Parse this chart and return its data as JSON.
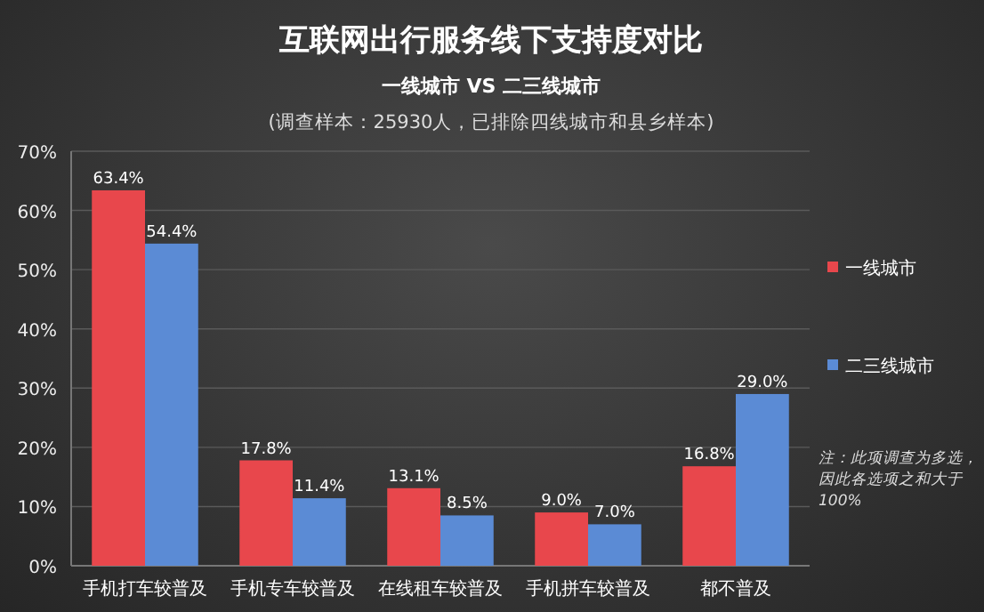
{
  "chart_data": {
    "type": "bar",
    "title": "互联网出行服务线下支持度对比",
    "subtitle": "一线城市 VS 二三线城市",
    "annotations": [
      "(调查样本：25930人，已排除四线城市和县乡样本)",
      "注：此项调查为多选，因此各选项之和大于100%"
    ],
    "categories": [
      "手机打车较普及",
      "手机专车较普及",
      "在线租车较普及",
      "手机拼车较普及",
      "都不普及"
    ],
    "series": [
      {
        "name": "一线城市",
        "color": "#e8474c",
        "values": [
          63.4,
          17.8,
          13.1,
          9.0,
          16.8
        ],
        "value_labels": [
          "63.4%",
          "17.8%",
          "13.1%",
          "9.0%",
          "16.8%"
        ]
      },
      {
        "name": "二三线城市",
        "color": "#5b8bd5",
        "values": [
          54.4,
          11.4,
          8.5,
          7.0,
          29.0
        ],
        "value_labels": [
          "54.4%",
          "11.4%",
          "8.5%",
          "7.0%",
          "29.0%"
        ]
      }
    ],
    "ylim": [
      0,
      70
    ],
    "yticks": [
      {
        "value": 0,
        "label": "0%"
      },
      {
        "value": 10,
        "label": "10%"
      },
      {
        "value": 20,
        "label": "20%"
      },
      {
        "value": 30,
        "label": "30%"
      },
      {
        "value": 40,
        "label": "40%"
      },
      {
        "value": 50,
        "label": "50%"
      },
      {
        "value": 60,
        "label": "60%"
      },
      {
        "value": 70,
        "label": "70%"
      }
    ],
    "grid": "y",
    "legend": "right"
  }
}
